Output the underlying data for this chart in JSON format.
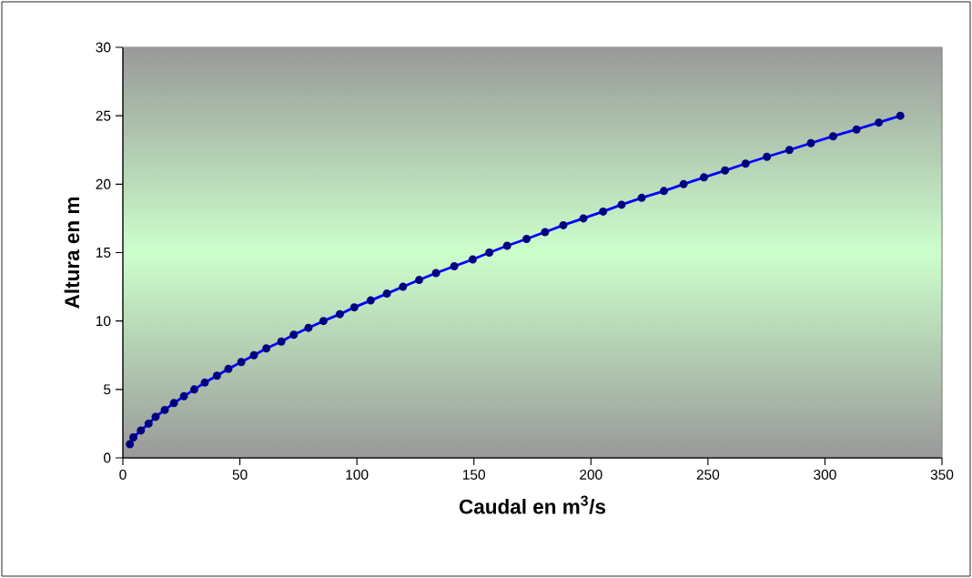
{
  "chart_data": {
    "type": "line",
    "xlabel": "Caudal en m$^{3}$/s",
    "ylabel": "Altura en m",
    "x": [
      3.0,
      4.5,
      7.7,
      11.0,
      14.0,
      17.9,
      21.8,
      26.1,
      30.5,
      35.0,
      40.2,
      45.1,
      50.6,
      56.0,
      61.3,
      67.7,
      73.0,
      79.3,
      85.7,
      92.7,
      98.9,
      105.9,
      112.8,
      119.7,
      126.6,
      133.8,
      141.6,
      149.5,
      156.6,
      164.2,
      172.5,
      180.4,
      188.2,
      196.8,
      205.2,
      213.1,
      221.7,
      231.2,
      239.6,
      248.3,
      257.3,
      266.1,
      275.2,
      284.8,
      294.0,
      303.5,
      313.5,
      323.0,
      332.2
    ],
    "values": [
      1,
      1.5,
      2,
      2.5,
      3,
      3.5,
      4,
      4.5,
      5,
      5.5,
      6,
      6.5,
      7,
      7.5,
      8,
      8.5,
      9,
      9.5,
      10,
      10.5,
      11,
      11.5,
      12,
      12.5,
      13,
      13.5,
      14,
      14.5,
      15,
      15.5,
      16,
      16.5,
      17,
      17.5,
      18,
      18.5,
      19,
      19.5,
      20,
      20.5,
      21,
      21.5,
      22,
      22.5,
      23,
      23.5,
      24,
      24.5,
      25
    ],
    "color": "#0000ff",
    "marker": "circle",
    "line_style": "solid",
    "xlim": [
      0,
      350
    ],
    "ylim": [
      0,
      30
    ],
    "xticks": [
      0,
      50,
      100,
      150,
      200,
      250,
      300,
      350
    ],
    "yticks": [
      0,
      5,
      10,
      15,
      20,
      25,
      30
    ],
    "grid": false
  }
}
